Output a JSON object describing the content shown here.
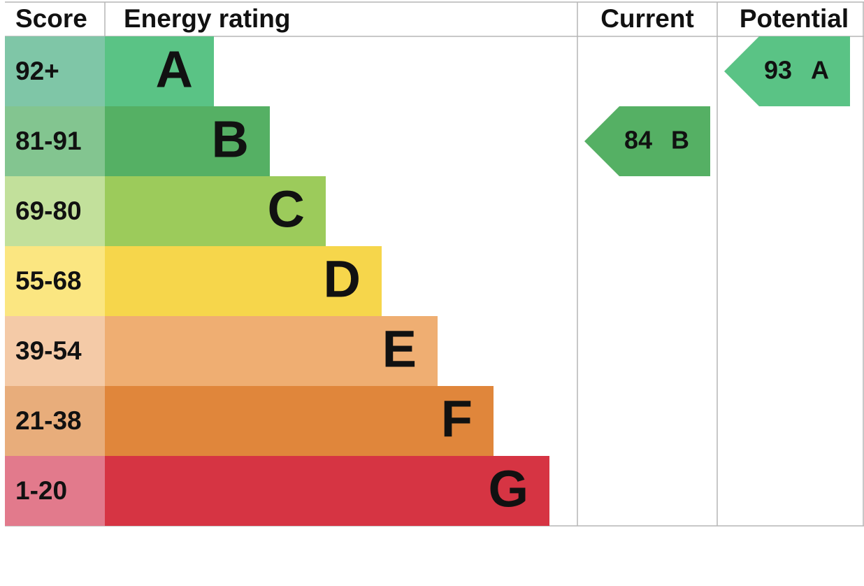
{
  "header": {
    "score": "Score",
    "rating": "Energy rating",
    "current": "Current",
    "potential": "Potential"
  },
  "bands": [
    {
      "score": "92+",
      "letter": "A",
      "color": "#5ac385",
      "light": "#7fc6a7"
    },
    {
      "score": "81-91",
      "letter": "B",
      "color": "#55b064",
      "light": "#83c590"
    },
    {
      "score": "69-80",
      "letter": "C",
      "color": "#9ccb5b",
      "light": "#c2e09b"
    },
    {
      "score": "55-68",
      "letter": "D",
      "color": "#f6d64b",
      "light": "#fbe681"
    },
    {
      "score": "39-54",
      "letter": "E",
      "color": "#efae72",
      "light": "#f4caa7"
    },
    {
      "score": "21-38",
      "letter": "F",
      "color": "#e0863b",
      "light": "#e8ad7b"
    },
    {
      "score": "1-20",
      "letter": "G",
      "color": "#d63443",
      "light": "#e27a8c"
    }
  ],
  "current": {
    "score": "84",
    "rating": "B"
  },
  "potential": {
    "score": "93",
    "rating": "A"
  }
}
